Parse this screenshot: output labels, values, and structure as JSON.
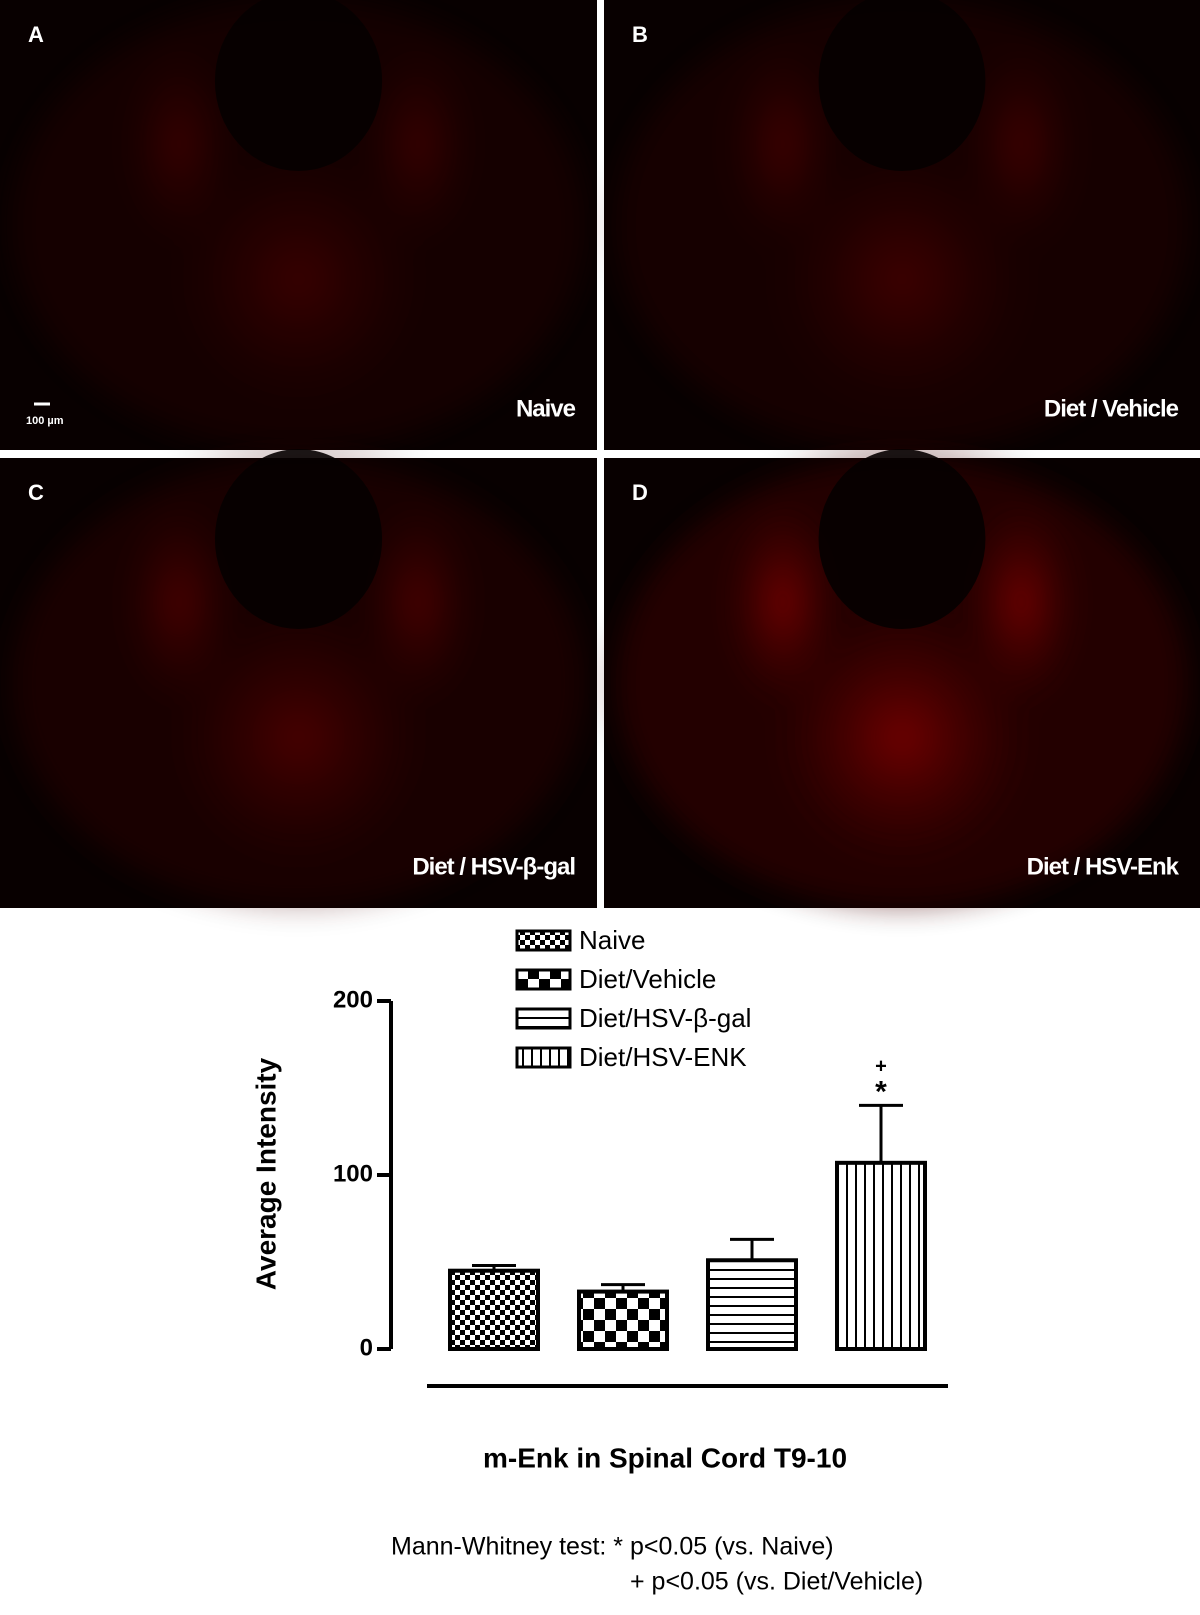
{
  "panels": [
    {
      "letter": "A",
      "caption": "Naive"
    },
    {
      "letter": "B",
      "caption": "Diet / Vehicle"
    },
    {
      "letter": "C",
      "caption": "Diet / HSV-β-gal"
    },
    {
      "letter": "D",
      "caption": "Diet / HSV-Enk"
    }
  ],
  "scale_bar": "100 µm",
  "chart_data": {
    "type": "bar",
    "series": [
      {
        "name": "Naive",
        "pattern": "checker-small",
        "values": [
          45
        ],
        "errors": [
          3
        ]
      },
      {
        "name": "Diet/Vehicle",
        "pattern": "checker-large",
        "values": [
          33
        ],
        "errors": [
          4
        ]
      },
      {
        "name": "Diet/HSV-β-gal",
        "pattern": "horizontal",
        "values": [
          51
        ],
        "errors": [
          12
        ]
      },
      {
        "name": "Diet/HSV-ENK",
        "pattern": "vertical",
        "values": [
          107
        ],
        "errors": [
          33
        ]
      }
    ],
    "ylabel": "Average Intensity",
    "xlabel": "m-Enk in Spinal Cord T9-10",
    "ylim": [
      0,
      200
    ],
    "yticks": [
      0,
      100,
      200
    ],
    "annotations": [
      "+",
      "*"
    ]
  },
  "footnote": [
    "Mann-Whitney test: * p<0.05 (vs. Naive)",
    "+ p<0.05 (vs. Diet/Vehicle)"
  ]
}
